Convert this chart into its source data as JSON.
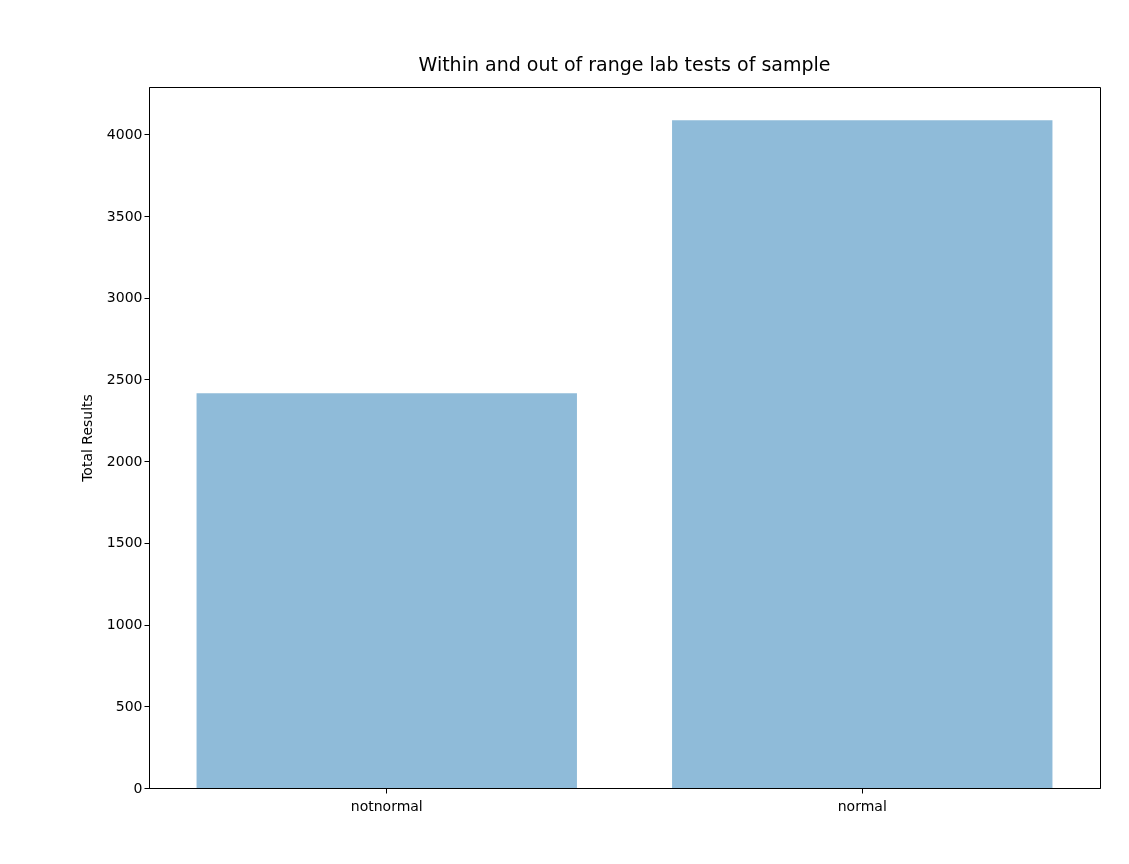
{
  "chart_data": {
    "type": "bar",
    "title": "Within and out of range lab tests of sample",
    "ylabel": "Total Results",
    "categories": [
      "notnormal",
      "normal"
    ],
    "values": [
      2416,
      4086
    ],
    "color": "#8fbbd9",
    "ylim": [
      0,
      4290
    ],
    "yticks": [
      0,
      500,
      1000,
      1500,
      2000,
      2500,
      3000,
      3500,
      4000
    ],
    "grid": false
  }
}
